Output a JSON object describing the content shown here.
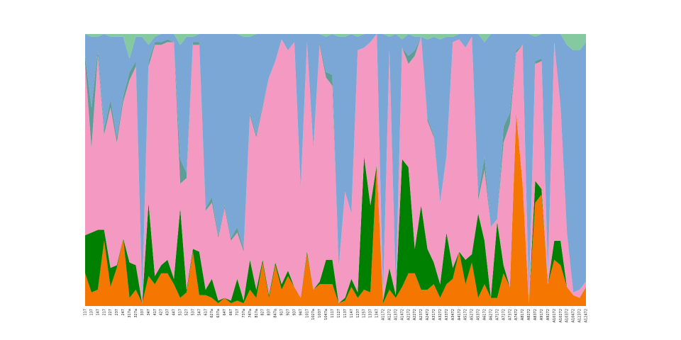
{
  "chart_data": {
    "type": "stacked_area",
    "categories": [
      "117",
      "137",
      "147",
      "217",
      "227",
      "237",
      "247",
      "317a",
      "327a",
      "337",
      "347",
      "417",
      "427",
      "437",
      "447",
      "517",
      "527",
      "537",
      "547",
      "617",
      "627a",
      "637a",
      "647",
      "667",
      "717",
      "737a",
      "747a",
      "817a",
      "827",
      "837",
      "847a",
      "917",
      "927",
      "937",
      "947",
      "1017",
      "1027a",
      "1037",
      "1047a",
      "1117",
      "1127",
      "1137",
      "1147",
      "1237",
      "1257",
      "1337",
      "1347",
      "A1172",
      "A1272",
      "A1372",
      "A1472",
      "A2172",
      "A2272",
      "A2372",
      "A2472",
      "A3172",
      "A3272",
      "A3372",
      "A3472",
      "A4172",
      "A5172",
      "A5272",
      "A5372",
      "A6172",
      "A6272",
      "A7172",
      "A7272",
      "A7372",
      "A7472",
      "A8172",
      "A8272",
      "A8372",
      "A9172",
      "A9272",
      "A10172",
      "A10272",
      "A10372",
      "A10472",
      "A12372",
      "A12472"
    ],
    "series": [
      {
        "color": "#f57600",
        "values": [
          12,
          5,
          6,
          24,
          7,
          14,
          25,
          3,
          6,
          1,
          11,
          8,
          12,
          12,
          8,
          3,
          5,
          20,
          4,
          4,
          3,
          1,
          3,
          1,
          2,
          1,
          6,
          3,
          16,
          3,
          15,
          6,
          11,
          7,
          3,
          19,
          6,
          8,
          8,
          8,
          1,
          2,
          7,
          3,
          6,
          5,
          52,
          1,
          6,
          3,
          7,
          12,
          12,
          6,
          6,
          8,
          3,
          8,
          10,
          20,
          8,
          16,
          3,
          8,
          3,
          3,
          12,
          7,
          71,
          45,
          1,
          38,
          41,
          8,
          17,
          15,
          7,
          4,
          3,
          7
        ]
      },
      {
        "color": "#008000",
        "values": [
          14,
          22,
          22,
          4,
          7,
          1,
          0,
          13,
          9,
          0,
          27,
          3,
          3,
          5,
          2,
          33,
          1,
          1,
          16,
          2,
          7,
          1,
          0,
          1,
          8,
          1,
          11,
          3,
          1,
          1,
          1,
          2,
          2,
          0,
          0,
          1,
          0,
          1,
          9,
          9,
          0,
          1,
          3,
          2,
          49,
          32,
          0,
          1,
          8,
          1,
          47,
          39,
          9,
          31,
          15,
          8,
          5,
          19,
          4,
          0,
          9,
          3,
          31,
          16,
          0,
          28,
          3,
          0,
          0,
          0,
          0,
          8,
          2,
          0,
          7,
          9,
          0,
          0,
          0,
          0
        ]
      },
      {
        "color": "#f49ac2",
        "values": [
          63,
          31,
          64,
          35,
          59,
          45,
          50,
          67,
          73,
          2,
          50,
          85,
          81,
          80,
          87,
          9,
          41,
          75,
          76,
          29,
          28,
          23,
          33,
          22,
          17,
          18,
          53,
          56,
          56,
          80,
          74,
          90,
          81,
          90,
          40,
          77,
          52,
          87,
          67,
          64,
          13,
          39,
          24,
          89,
          40,
          60,
          48,
          2,
          80,
          2,
          41,
          38,
          71,
          62,
          47,
          46,
          30,
          28,
          83,
          78,
          78,
          80,
          5,
          26,
          26,
          1,
          45,
          60,
          22,
          51,
          2,
          43,
          47,
          4,
          73,
          49,
          20,
          1,
          3,
          2
        ]
      },
      {
        "color": "#5f9e98",
        "values": [
          3,
          15,
          2,
          2,
          3,
          2,
          2,
          3,
          2,
          0,
          2,
          1,
          1,
          1,
          0,
          9,
          2,
          1,
          1,
          1,
          2,
          1,
          1,
          1,
          2,
          1,
          1,
          1,
          1,
          0,
          0,
          0,
          0,
          0,
          0,
          0,
          0,
          1,
          2,
          4,
          0,
          0,
          0,
          0,
          0,
          0,
          0,
          0,
          0,
          0,
          0,
          3,
          2,
          0,
          1,
          1,
          0,
          0,
          0,
          0,
          0,
          0,
          2,
          5,
          0,
          0,
          6,
          4,
          1,
          0,
          0,
          1,
          1,
          0,
          0,
          0,
          0,
          0,
          0,
          0
        ]
      },
      {
        "color": "#7ba7d7",
        "values": [
          8,
          26,
          5,
          35,
          23,
          37,
          22,
          5,
          9,
          96,
          6,
          2,
          3,
          2,
          3,
          42,
          50,
          2,
          3,
          64,
          60,
          74,
          63,
          75,
          71,
          78,
          28,
          37,
          26,
          16,
          10,
          2,
          6,
          3,
          57,
          3,
          42,
          3,
          13,
          15,
          85,
          57,
          66,
          5,
          5,
          3,
          0,
          96,
          5,
          94,
          3,
          8,
          5,
          0,
          29,
          36,
          60,
          44,
          2,
          2,
          5,
          1,
          59,
          42,
          71,
          68,
          34,
          29,
          6,
          4,
          97,
          9,
          9,
          88,
          3,
          27,
          69,
          89,
          88,
          88
        ]
      },
      {
        "color": "#84c99f",
        "values": [
          0,
          1,
          1,
          0,
          1,
          1,
          1,
          9,
          1,
          1,
          4,
          1,
          0,
          0,
          0,
          4,
          1,
          1,
          0,
          0,
          0,
          0,
          0,
          0,
          0,
          1,
          1,
          0,
          0,
          0,
          0,
          0,
          0,
          0,
          0,
          0,
          0,
          0,
          1,
          0,
          1,
          1,
          0,
          1,
          0,
          0,
          0,
          0,
          1,
          0,
          2,
          0,
          1,
          1,
          2,
          1,
          2,
          1,
          1,
          0,
          0,
          0,
          0,
          3,
          0,
          0,
          0,
          0,
          0,
          0,
          0,
          1,
          0,
          0,
          0,
          0,
          4,
          6,
          6,
          3
        ]
      }
    ],
    "ylim": [
      0,
      100
    ]
  }
}
